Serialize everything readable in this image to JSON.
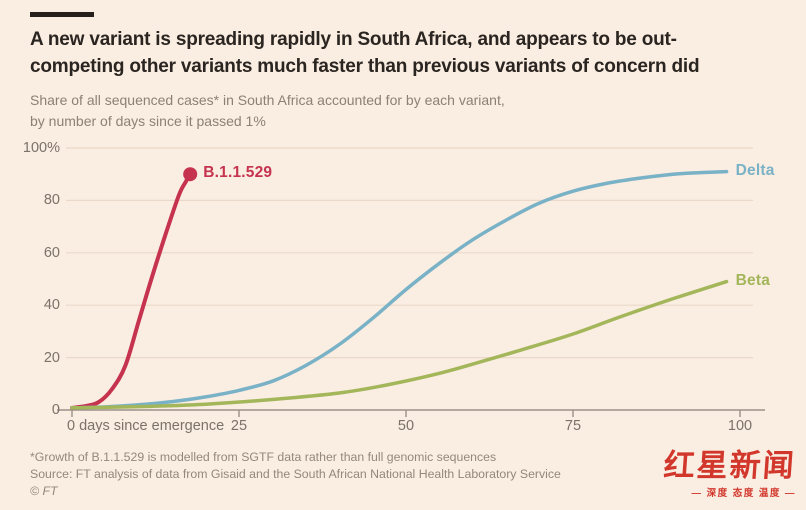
{
  "chart_data": {
    "type": "line",
    "title": "A new variant is spreading rapidly in South Africa, and appears to be out-\ncompeting other variants much faster than previous variants of concern did",
    "subtitle": "Share of all sequenced cases* in South Africa accounted for by each variant,\nby number of days since it passed 1%",
    "xlabel": "days since emergence",
    "ylabel": "",
    "xlim": [
      0,
      100
    ],
    "ylim": [
      0,
      100
    ],
    "grid": "horizontal",
    "legend_position": "line-end-labels",
    "background_color": "#faede2",
    "gridline_color": "#ead9c9",
    "axis_color": "#9a9187",
    "xticks": [
      {
        "v": 0,
        "label": "0 days since emergence"
      },
      {
        "v": 25,
        "label": "25"
      },
      {
        "v": 50,
        "label": "50"
      },
      {
        "v": 75,
        "label": "75"
      },
      {
        "v": 100,
        "label": "100"
      }
    ],
    "yticks": [
      {
        "v": 0,
        "label": "0"
      },
      {
        "v": 20,
        "label": "20"
      },
      {
        "v": 40,
        "label": "40"
      },
      {
        "v": 60,
        "label": "60"
      },
      {
        "v": 80,
        "label": "80"
      },
      {
        "v": 100,
        "label": "100%"
      }
    ],
    "series": [
      {
        "name": "B.1.1.529",
        "color": "#c5334e",
        "width": 4,
        "marker_end": true,
        "points": [
          [
            0,
            0.8
          ],
          [
            2,
            1.5
          ],
          [
            4,
            3
          ],
          [
            6,
            8
          ],
          [
            8,
            17
          ],
          [
            10,
            34
          ],
          [
            12,
            51
          ],
          [
            14,
            67
          ],
          [
            16,
            82
          ],
          [
            17,
            87
          ],
          [
            17.7,
            90
          ]
        ]
      },
      {
        "name": "Delta",
        "color": "#79b2c6",
        "width": 3.5,
        "marker_end": false,
        "points": [
          [
            0,
            0.8
          ],
          [
            5,
            1.2
          ],
          [
            10,
            2
          ],
          [
            15,
            3.2
          ],
          [
            20,
            5
          ],
          [
            25,
            7.5
          ],
          [
            30,
            11
          ],
          [
            35,
            17
          ],
          [
            40,
            25
          ],
          [
            45,
            35
          ],
          [
            50,
            46
          ],
          [
            55,
            56
          ],
          [
            60,
            65
          ],
          [
            65,
            72.5
          ],
          [
            70,
            79
          ],
          [
            75,
            83.5
          ],
          [
            80,
            86.5
          ],
          [
            85,
            88.5
          ],
          [
            90,
            90
          ],
          [
            94,
            90.6
          ],
          [
            98,
            91
          ]
        ]
      },
      {
        "name": "Beta",
        "color": "#a3b65a",
        "width": 3.5,
        "marker_end": false,
        "points": [
          [
            0,
            0.8
          ],
          [
            10,
            1.3
          ],
          [
            20,
            2.2
          ],
          [
            30,
            4
          ],
          [
            40,
            6.5
          ],
          [
            47,
            9.5
          ],
          [
            55,
            14
          ],
          [
            62,
            19
          ],
          [
            68,
            23.5
          ],
          [
            75,
            29
          ],
          [
            82,
            35.5
          ],
          [
            90,
            42.5
          ],
          [
            98,
            49
          ]
        ]
      }
    ]
  },
  "footer": {
    "footnote": "*Growth of B.1.1.529 is modelled from SGTF data rather than full genomic sequences",
    "source": "Source: FT analysis of data from Gisaid and the South African National Health Laboratory Service",
    "copyright": "© FT"
  },
  "logo": {
    "text": "红星新闻",
    "tagline": "— 深度 态度 温度 —",
    "color": "#d2372c"
  }
}
